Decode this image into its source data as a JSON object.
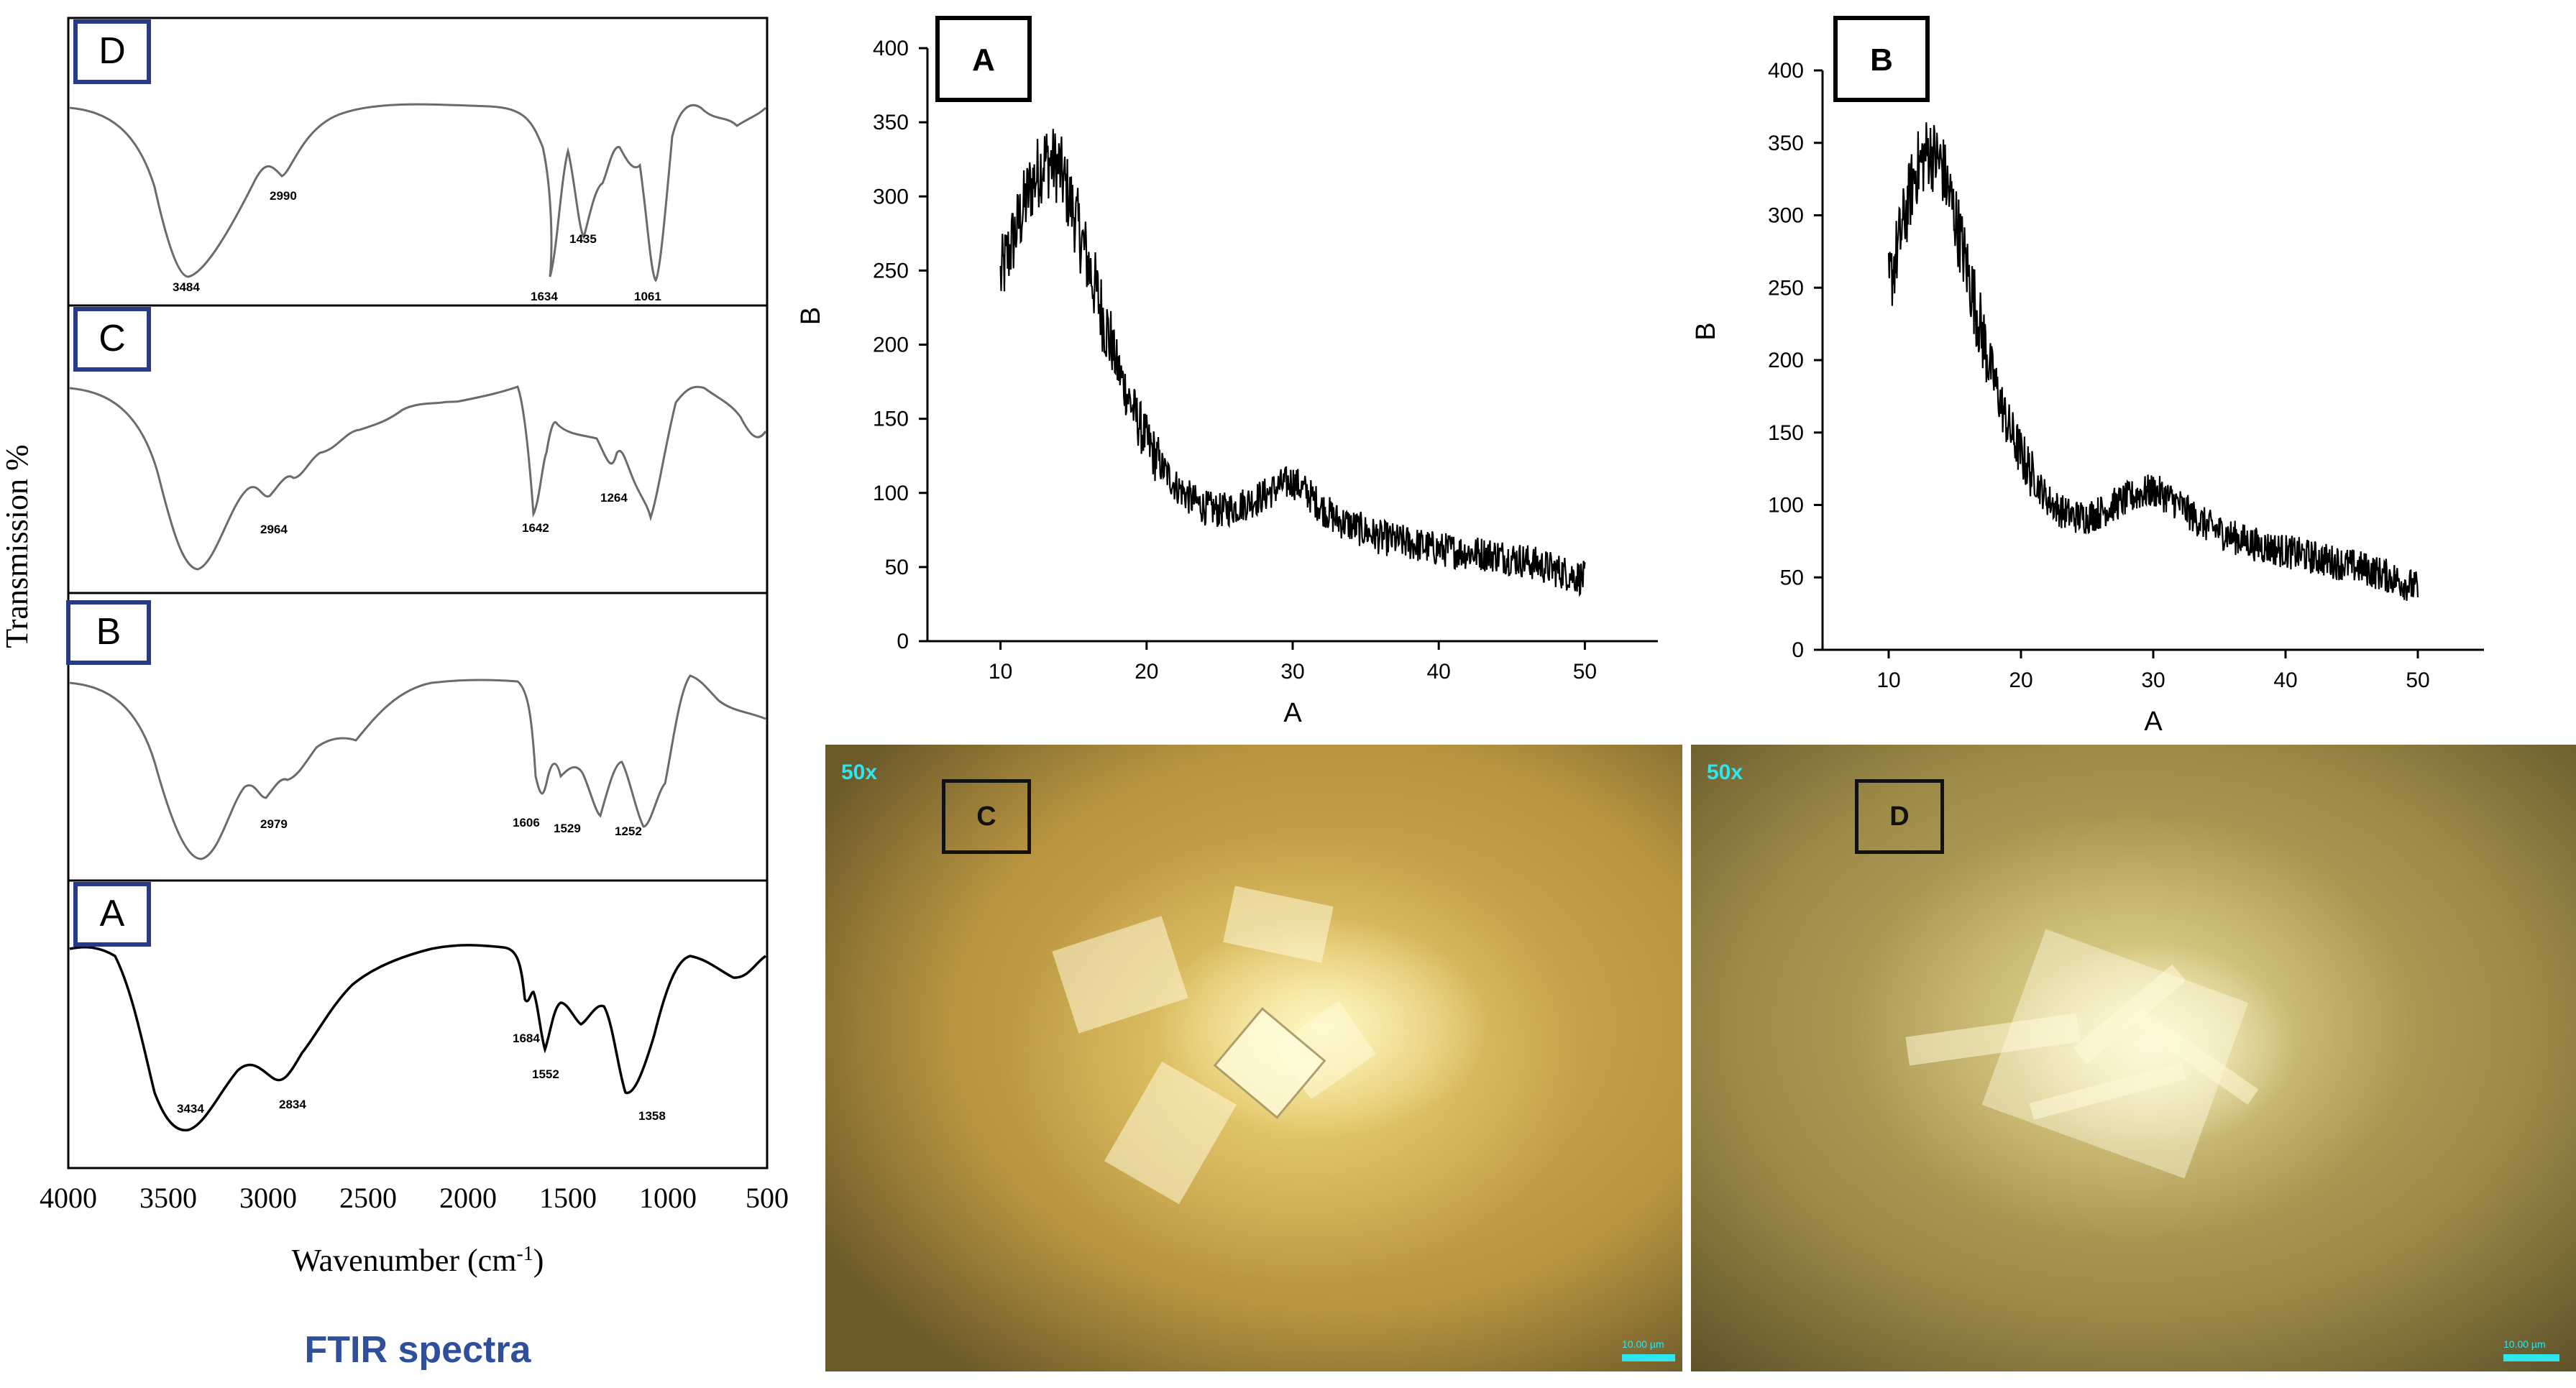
{
  "colors": {
    "ftir_title": "#2f4f9a",
    "box_border": "#263a8a",
    "spectrum_gray": "#6b6b6b",
    "spectrum_black": "#000000",
    "scale_cyan": "#2ee6f0"
  },
  "ftir": {
    "ylabel": "Transmission %",
    "xlabel": "Wavenumber (cm",
    "xlabel_sup": "-1",
    "xlabel_end": ")",
    "title": "FTIR spectra",
    "x_ticks": [
      "4000",
      "3500",
      "3000",
      "2500",
      "2000",
      "1500",
      "1000",
      "500"
    ],
    "panels": [
      {
        "label": "D",
        "peaks": [
          "3484",
          "2990",
          "1634",
          "1435",
          "1061"
        ]
      },
      {
        "label": "C",
        "peaks": [
          "2964",
          "1642",
          "1264"
        ]
      },
      {
        "label": "B",
        "peaks": [
          "2979",
          "1606",
          "1529",
          "1252"
        ]
      },
      {
        "label": "A",
        "peaks": [
          "3434",
          "2834",
          "1684",
          "1552",
          "1358"
        ]
      }
    ]
  },
  "photos": [
    {
      "label": "C",
      "magnification": "50x",
      "scale_text": "10.00 µm"
    },
    {
      "label": "D",
      "magnification": "50x",
      "scale_text": "10.00 µm"
    }
  ],
  "chart_data": [
    {
      "type": "line",
      "panel": "A",
      "xlabel": "A",
      "ylabel": "B",
      "xlim": [
        5,
        55
      ],
      "ylim": [
        0,
        400
      ],
      "x_ticks": [
        10,
        20,
        30,
        40,
        50
      ],
      "y_ticks": [
        0,
        50,
        100,
        150,
        200,
        250,
        300,
        350,
        400
      ],
      "envelope": {
        "x": [
          10,
          11,
          12,
          13,
          14,
          15,
          16,
          17,
          18,
          19,
          20,
          21,
          22,
          23,
          24,
          25,
          26,
          27,
          28,
          29,
          30,
          31,
          32,
          33,
          34,
          35,
          36,
          38,
          40,
          42,
          44,
          46,
          48,
          50
        ],
        "y": [
          245,
          275,
          305,
          325,
          320,
          290,
          255,
          220,
          185,
          158,
          135,
          118,
          105,
          96,
          90,
          88,
          90,
          94,
          98,
          104,
          108,
          100,
          90,
          82,
          78,
          74,
          70,
          66,
          62,
          60,
          58,
          54,
          48,
          42
        ]
      }
    },
    {
      "type": "line",
      "panel": "B",
      "xlabel": "A",
      "ylabel": "B",
      "xlim": [
        5,
        55
      ],
      "ylim": [
        0,
        400
      ],
      "x_ticks": [
        10,
        20,
        30,
        40,
        50
      ],
      "y_ticks": [
        0,
        50,
        100,
        150,
        200,
        250,
        300,
        350,
        400
      ],
      "envelope": {
        "x": [
          10,
          11,
          12,
          13,
          14,
          15,
          16,
          17,
          18,
          19,
          20,
          21,
          22,
          23,
          24,
          25,
          26,
          27,
          28,
          29,
          30,
          31,
          32,
          33,
          34,
          35,
          36,
          38,
          40,
          42,
          44,
          46,
          48,
          50
        ],
        "y": [
          250,
          290,
          330,
          345,
          335,
          300,
          260,
          220,
          185,
          155,
          135,
          118,
          104,
          96,
          92,
          92,
          95,
          100,
          104,
          108,
          110,
          106,
          100,
          92,
          86,
          82,
          78,
          72,
          68,
          64,
          60,
          56,
          50,
          42
        ]
      }
    }
  ]
}
